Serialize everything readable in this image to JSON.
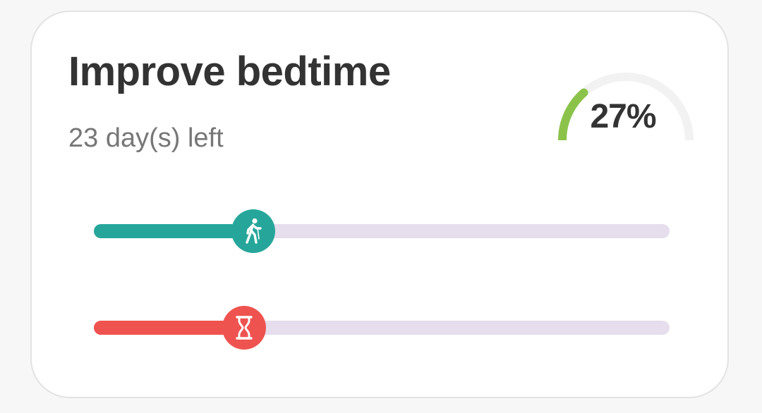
{
  "card": {
    "title": "Improve bedtime",
    "days_left": "23 day(s) left",
    "percent_label": "27%",
    "percent_value": 0.27
  },
  "progress_slider": {
    "icon": "walking-person-icon",
    "fraction": 0.277,
    "color": "#26a69a"
  },
  "time_slider": {
    "icon": "hourglass-icon",
    "fraction": 0.261,
    "color": "#ef5350"
  },
  "colors": {
    "track": "#e6deec",
    "gauge_fill": "#8bc34a",
    "gauge_track": "#f2f2f2",
    "title": "#333333",
    "subtitle": "#777777"
  }
}
